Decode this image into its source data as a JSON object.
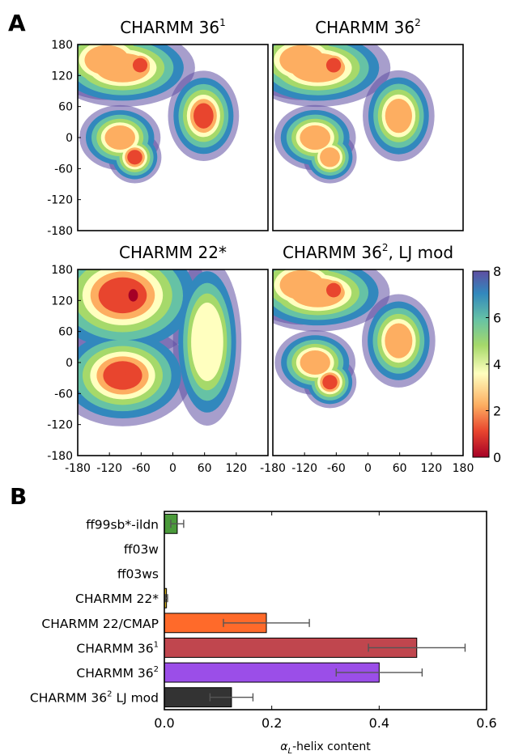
{
  "panel_a": {
    "letter": "A"
  },
  "panel_b": {
    "letter": "B"
  },
  "chart_data": [
    {
      "type": "heatmap",
      "title": "CHARMM 36",
      "title_superscript": "1",
      "xlim": [
        -180,
        180
      ],
      "ylim": [
        -180,
        180
      ],
      "yticks": [
        "180",
        "120",
        "60",
        "0",
        "-60",
        "-120",
        "-180"
      ],
      "regions": [
        {
          "phi": -95,
          "psi": 135,
          "sx": 40,
          "sy": 22,
          "level": 1.4
        },
        {
          "phi": -62,
          "psi": 140,
          "sx": 15,
          "sy": 15,
          "level": 0.6
        },
        {
          "phi": -125,
          "psi": 150,
          "sx": 32,
          "sy": 22,
          "level": 1.9
        },
        {
          "phi": -100,
          "psi": 0,
          "sx": 22,
          "sy": 18,
          "level": 1.8
        },
        {
          "phi": -72,
          "psi": -38,
          "sx": 15,
          "sy": 15,
          "level": 1.0
        },
        {
          "phi": 58,
          "psi": 42,
          "sx": 20,
          "sy": 26,
          "level": 1.0
        }
      ]
    },
    {
      "type": "heatmap",
      "title": "CHARMM 36",
      "title_superscript": "2",
      "xlim": [
        -180,
        180
      ],
      "ylim": [
        -180,
        180
      ],
      "regions": [
        {
          "phi": -95,
          "psi": 135,
          "sx": 40,
          "sy": 22,
          "level": 1.5
        },
        {
          "phi": -65,
          "psi": 140,
          "sx": 15,
          "sy": 15,
          "level": 0.8
        },
        {
          "phi": -125,
          "psi": 150,
          "sx": 32,
          "sy": 22,
          "level": 2.0
        },
        {
          "phi": -100,
          "psi": 0,
          "sx": 22,
          "sy": 18,
          "level": 1.9
        },
        {
          "phi": -72,
          "psi": -38,
          "sx": 15,
          "sy": 15,
          "level": 1.1
        },
        {
          "phi": 58,
          "psi": 42,
          "sx": 20,
          "sy": 26,
          "level": 1.2
        }
      ]
    },
    {
      "type": "heatmap",
      "title": "CHARMM 22*",
      "xlim": [
        -180,
        180
      ],
      "ylim": [
        -180,
        180
      ],
      "yticks": [
        "180",
        "120",
        "60",
        "0",
        "-60",
        "-120",
        "-180"
      ],
      "xticks": [
        "-180",
        "-120",
        "-60",
        "0",
        "60",
        "120"
      ],
      "regions": [
        {
          "phi": -95,
          "psi": 130,
          "sx": 50,
          "sy": 38,
          "level": 0.3
        },
        {
          "phi": -75,
          "psi": 130,
          "sx": 15,
          "sy": 20,
          "level": 0.0
        },
        {
          "phi": -95,
          "psi": -25,
          "sx": 40,
          "sy": 30,
          "level": 0.5
        },
        {
          "phi": -75,
          "psi": -25,
          "sx": 16,
          "sy": 16,
          "level": 0.2
        },
        {
          "phi": 65,
          "psi": 40,
          "sx": 18,
          "sy": 45,
          "level": 2.5
        }
      ]
    },
    {
      "type": "heatmap",
      "title": "CHARMM 36",
      "title_superscript": "2",
      "title_suffix": ", LJ mod",
      "xlim": [
        -180,
        180
      ],
      "ylim": [
        -180,
        180
      ],
      "xticks": [
        "-180",
        "-120",
        "-60",
        "0",
        "60",
        "120",
        "180"
      ],
      "regions": [
        {
          "phi": -95,
          "psi": 135,
          "sx": 40,
          "sy": 22,
          "level": 1.3
        },
        {
          "phi": -65,
          "psi": 140,
          "sx": 15,
          "sy": 15,
          "level": 0.6
        },
        {
          "phi": -125,
          "psi": 150,
          "sx": 32,
          "sy": 22,
          "level": 1.8
        },
        {
          "phi": -100,
          "psi": 0,
          "sx": 22,
          "sy": 18,
          "level": 1.7
        },
        {
          "phi": -72,
          "psi": -38,
          "sx": 15,
          "sy": 15,
          "level": 0.9
        },
        {
          "phi": 58,
          "psi": 42,
          "sx": 20,
          "sy": 26,
          "level": 1.7
        }
      ]
    },
    {
      "type": "colorbar",
      "range": [
        0,
        8
      ],
      "ticks": [
        "8",
        "6",
        "4",
        "2",
        "0"
      ],
      "colors": [
        "#a50026",
        "#e8452e",
        "#fdae61",
        "#ffffbf",
        "#a6d96a",
        "#66c2a5",
        "#3288bd",
        "#5e4fa2"
      ]
    },
    {
      "type": "bar",
      "orientation": "horizontal",
      "categories": [
        {
          "name": "ff99sb*-ildn"
        },
        {
          "name": "ff03w"
        },
        {
          "name": "ff03ws"
        },
        {
          "name": "CHARMM 22*"
        },
        {
          "name": "CHARMM 22/CMAP"
        },
        {
          "name": "CHARMM 36",
          "sup": "1"
        },
        {
          "name": "CHARMM 36",
          "sup": "2"
        },
        {
          "name": "CHARMM 36",
          "sup": "2",
          "suffix": "  LJ mod"
        }
      ],
      "values": [
        0.024,
        0.0,
        0.0,
        0.004,
        0.19,
        0.47,
        0.4,
        0.125
      ],
      "errors": [
        0.012,
        0.0,
        0.0,
        0.002,
        0.08,
        0.09,
        0.08,
        0.04
      ],
      "colors": [
        "#4a9a3a",
        "#ffffff",
        "#ffffff",
        "#d4b020",
        "#ff6a2a",
        "#c0464e",
        "#9b4ee8",
        "#333333"
      ],
      "xlim": [
        0,
        0.6
      ],
      "xticks": [
        "0.0",
        "0.2",
        "0.4",
        "0.6"
      ],
      "xlabel": "α",
      "xlabel_sub": "L",
      "xlabel_suffix": "-helix content"
    }
  ]
}
